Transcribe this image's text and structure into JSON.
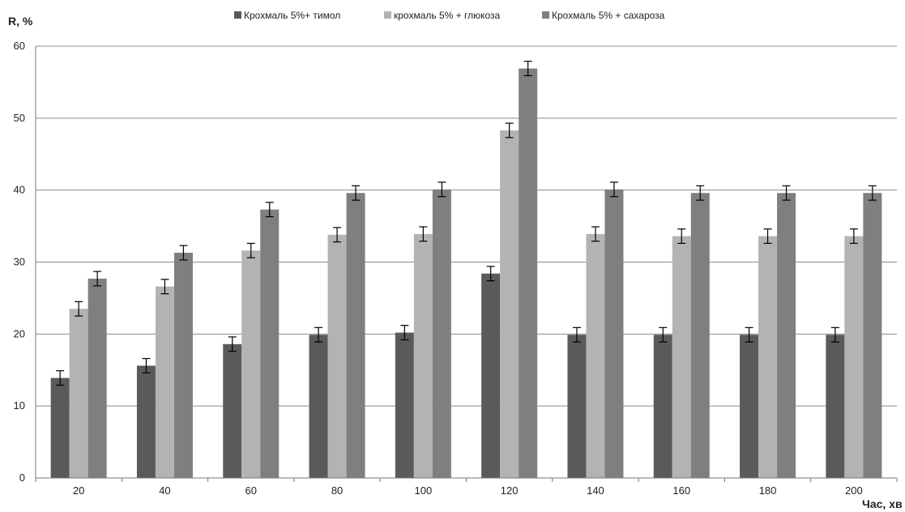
{
  "chart_data": {
    "type": "bar",
    "title": "",
    "ylabel": "R, %",
    "xlabel": "Час, хв",
    "categories": [
      "20",
      "40",
      "60",
      "80",
      "100",
      "120",
      "140",
      "160",
      "180",
      "200"
    ],
    "ylim": [
      0,
      60
    ],
    "yticks": [
      0,
      10,
      20,
      30,
      40,
      50,
      60
    ],
    "grid": true,
    "legend_position": "top",
    "error_bars": true,
    "series": [
      {
        "name": "Крохмаль 5%+ тимол",
        "color": "#5a5a5a",
        "values": [
          13.9,
          15.6,
          18.6,
          19.9,
          20.2,
          28.4,
          19.9,
          19.9,
          19.9,
          19.9
        ],
        "errors": [
          1.0,
          1.0,
          1.0,
          1.0,
          1.0,
          1.0,
          1.0,
          1.0,
          1.0,
          1.0
        ]
      },
      {
        "name": "крохмаль 5% + глюкоза",
        "color": "#b3b3b3",
        "values": [
          23.5,
          26.6,
          31.6,
          33.8,
          33.9,
          48.3,
          33.9,
          33.6,
          33.6,
          33.6
        ],
        "errors": [
          1.0,
          1.0,
          1.0,
          1.0,
          1.0,
          1.0,
          1.0,
          1.0,
          1.0,
          1.0
        ]
      },
      {
        "name": "Крохмаль 5% + сахароза",
        "color": "#7f7f7f",
        "values": [
          27.7,
          31.3,
          37.3,
          39.6,
          40.1,
          56.9,
          40.1,
          39.6,
          39.6,
          39.6
        ],
        "errors": [
          1.0,
          1.0,
          1.0,
          1.0,
          1.0,
          1.0,
          1.0,
          1.0,
          1.0,
          1.0
        ]
      }
    ]
  }
}
